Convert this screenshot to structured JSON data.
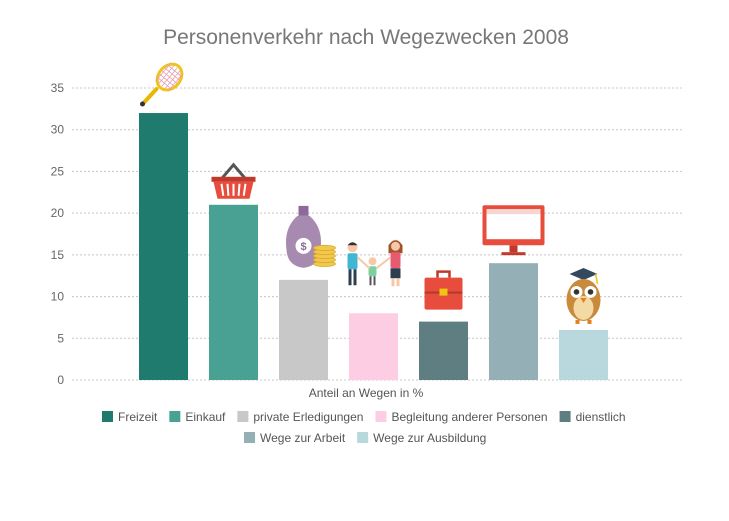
{
  "chart_data": {
    "type": "bar",
    "title": "Personenverkehr nach Wegezwecken 2008",
    "xlabel": "Anteil an Wegen in %",
    "ylabel": "",
    "ylim": [
      0,
      35
    ],
    "yticks": [
      0,
      5,
      10,
      15,
      20,
      25,
      30,
      35
    ],
    "grid": true,
    "legend_position": "bottom",
    "series": [
      {
        "name": "Freizeit",
        "value": 32,
        "color": "#1e7b6e",
        "icon": "tennis-racket-icon"
      },
      {
        "name": "Einkauf",
        "value": 21,
        "color": "#48a193",
        "icon": "shopping-basket-icon"
      },
      {
        "name": "private Erledigungen",
        "value": 12,
        "color": "#c8c8c8",
        "icon": "money-bag-icon"
      },
      {
        "name": "Begleitung anderer Personen",
        "value": 8,
        "color": "#fccde3",
        "icon": "family-icon"
      },
      {
        "name": "dienstlich",
        "value": 7,
        "color": "#5f7e81",
        "icon": "briefcase-icon"
      },
      {
        "name": "Wege zur Arbeit",
        "value": 14,
        "color": "#94afb5",
        "icon": "monitor-icon"
      },
      {
        "name": "Wege zur Ausbildung",
        "value": 6,
        "color": "#b8d8de",
        "icon": "owl-graduate-icon"
      }
    ]
  }
}
